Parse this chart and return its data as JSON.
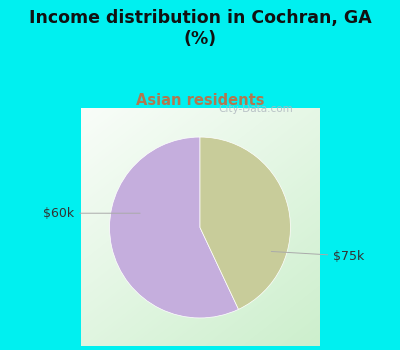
{
  "title": "Income distribution in Cochran, GA\n(%)",
  "subtitle": "Asian residents",
  "slices": [
    {
      "label": "$75k",
      "value": 57,
      "color": "#c5aedd"
    },
    {
      "label": "$60k",
      "value": 43,
      "color": "#c8cc9a"
    }
  ],
  "title_color": "#111111",
  "subtitle_color": "#b07850",
  "label_color": "#333333",
  "bg_color_top": "#00f0f0",
  "watermark": "City-Data.com",
  "startangle": 90,
  "figsize": [
    4.0,
    3.5
  ],
  "dpi": 100
}
